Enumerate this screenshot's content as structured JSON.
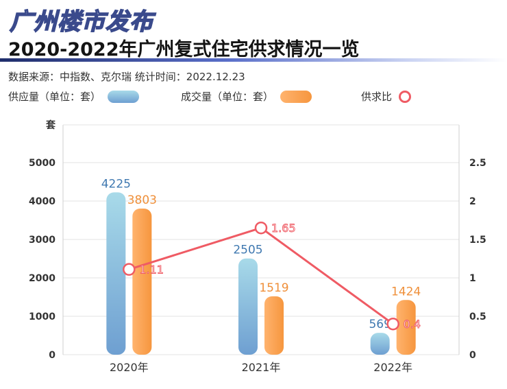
{
  "header": {
    "brand": "广州楼市发布",
    "title": "2020-2022年广州复式住宅供求情况一览",
    "source": "数据来源：中指数、克尔瑞    统计时间：2022.12.23"
  },
  "legend": {
    "supply": "供应量（单位：套）",
    "deal": "成交量（单位：套）",
    "ratio": "供求比"
  },
  "colors": {
    "supply_top": "#a8dae9",
    "supply_bottom": "#6e9fd1",
    "supply_label": "#3f78b0",
    "deal_top": "#ffb36e",
    "deal_bottom": "#f6963e",
    "deal_label": "#ef8f39",
    "ratio_line": "#ef5b64"
  },
  "chart_data": {
    "type": "bar",
    "categories": [
      "2020年",
      "2021年",
      "2022年"
    ],
    "series": [
      {
        "name": "供应量（单位：套）",
        "type": "bar",
        "axis": "left",
        "values": [
          4225,
          2505,
          569
        ]
      },
      {
        "name": "成交量（单位：套）",
        "type": "bar",
        "axis": "left",
        "values": [
          3803,
          1519,
          1424
        ]
      },
      {
        "name": "供求比",
        "type": "line",
        "axis": "right",
        "values": [
          1.11,
          1.65,
          0.4
        ]
      }
    ],
    "ylabel": "套",
    "ylim": [
      0,
      5000
    ],
    "y_ticks": [
      "0",
      "1000",
      "2000",
      "3000",
      "4000",
      "5000"
    ],
    "y2lim": [
      0,
      2.5
    ],
    "y2_ticks": [
      "0",
      "0.5",
      "1",
      "1.5",
      "2",
      "2.5"
    ],
    "grid": true,
    "legend_position": "top-left"
  }
}
